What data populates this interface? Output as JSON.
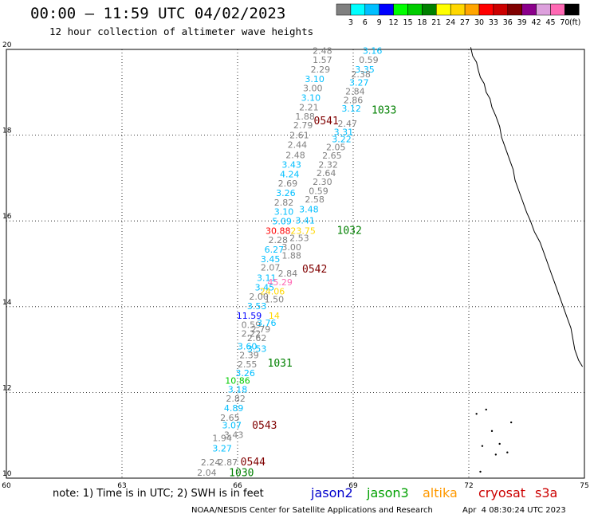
{
  "title": "00:00 – 11:59 UTC 04/02/2023",
  "subtitle": "12 hour collection of altimeter wave heights",
  "legend": {
    "colors": [
      "#808080",
      "#00ffff",
      "#00bfff",
      "#0000ff",
      "#00ff00",
      "#00cc00",
      "#008000",
      "#ffff00",
      "#ffd700",
      "#ffa500",
      "#ff0000",
      "#cc0000",
      "#800000",
      "#8b008b",
      "#dda0dd",
      "#ff69b4",
      "#000000"
    ],
    "labels": [
      "3",
      "6",
      "9",
      "12",
      "15",
      "18",
      "21",
      "24",
      "27",
      "30",
      "33",
      "36",
      "39",
      "42",
      "45",
      "70"
    ],
    "unit": "(ft)"
  },
  "axes": {
    "lon_min": 60,
    "lon_max": 75,
    "lat_min": 10,
    "lat_max": 20,
    "x_ticks": [
      "60",
      "63",
      "66",
      "69",
      "72",
      "75"
    ],
    "y_ticks": [
      "10",
      "12",
      "14",
      "16",
      "18",
      "20"
    ]
  },
  "track_markers": [
    {
      "label": "1033",
      "lon": 69.8,
      "lat": 18.5,
      "color": "#008000"
    },
    {
      "label": "0541",
      "lon": 68.3,
      "lat": 18.25,
      "color": "#800000"
    },
    {
      "label": "1032",
      "lon": 68.9,
      "lat": 15.7,
      "color": "#008000"
    },
    {
      "label": "0542",
      "lon": 68.0,
      "lat": 14.8,
      "color": "#800000"
    },
    {
      "label": "1031",
      "lon": 67.1,
      "lat": 12.6,
      "color": "#008000"
    },
    {
      "label": "0543",
      "lon": 66.7,
      "lat": 11.15,
      "color": "#800000"
    },
    {
      "label": "0544",
      "lon": 66.4,
      "lat": 10.3,
      "color": "#800000"
    },
    {
      "label": "1030",
      "lon": 66.1,
      "lat": 10.05,
      "color": "#008000"
    }
  ],
  "observations": [
    {
      "v": "2.48",
      "lon": 68.2,
      "lat": 19.9,
      "c": "#808080"
    },
    {
      "v": "3.16",
      "lon": 69.5,
      "lat": 19.9,
      "c": "#00bfff"
    },
    {
      "v": "1.57",
      "lon": 68.2,
      "lat": 19.68,
      "c": "#808080"
    },
    {
      "v": "0.59",
      "lon": 69.4,
      "lat": 19.68,
      "c": "#808080"
    },
    {
      "v": "2.29",
      "lon": 68.15,
      "lat": 19.46,
      "c": "#808080"
    },
    {
      "v": "3.35",
      "lon": 69.3,
      "lat": 19.46,
      "c": "#00bfff"
    },
    {
      "v": "3.10",
      "lon": 68.0,
      "lat": 19.24,
      "c": "#00bfff"
    },
    {
      "v": "2.38",
      "lon": 69.2,
      "lat": 19.35,
      "c": "#808080"
    },
    {
      "v": "3.27",
      "lon": 69.15,
      "lat": 19.15,
      "c": "#00bfff"
    },
    {
      "v": "3.00",
      "lon": 67.95,
      "lat": 19.02,
      "c": "#808080"
    },
    {
      "v": "2.84",
      "lon": 69.05,
      "lat": 18.95,
      "c": "#808080"
    },
    {
      "v": "3.10",
      "lon": 67.9,
      "lat": 18.8,
      "c": "#00bfff"
    },
    {
      "v": "2.86",
      "lon": 69.0,
      "lat": 18.75,
      "c": "#808080"
    },
    {
      "v": "2.21",
      "lon": 67.85,
      "lat": 18.58,
      "c": "#808080"
    },
    {
      "v": "3.12",
      "lon": 68.95,
      "lat": 18.55,
      "c": "#00bfff"
    },
    {
      "v": "1.88",
      "lon": 67.75,
      "lat": 18.36,
      "c": "#808080"
    },
    {
      "v": "2.47",
      "lon": 68.85,
      "lat": 18.2,
      "c": "#808080"
    },
    {
      "v": "2.79",
      "lon": 67.7,
      "lat": 18.16,
      "c": "#808080"
    },
    {
      "v": "3.31",
      "lon": 68.75,
      "lat": 18.0,
      "c": "#00bfff"
    },
    {
      "v": "2.61",
      "lon": 67.6,
      "lat": 17.93,
      "c": "#808080"
    },
    {
      "v": "3.22",
      "lon": 68.7,
      "lat": 17.83,
      "c": "#00bfff"
    },
    {
      "v": "2.44",
      "lon": 67.55,
      "lat": 17.7,
      "c": "#808080"
    },
    {
      "v": "2.05",
      "lon": 68.55,
      "lat": 17.65,
      "c": "#808080"
    },
    {
      "v": "2.48",
      "lon": 67.5,
      "lat": 17.46,
      "c": "#808080"
    },
    {
      "v": "2.65",
      "lon": 68.45,
      "lat": 17.45,
      "c": "#808080"
    },
    {
      "v": "3.43",
      "lon": 67.4,
      "lat": 17.24,
      "c": "#00bfff"
    },
    {
      "v": "2.32",
      "lon": 68.35,
      "lat": 17.24,
      "c": "#808080"
    },
    {
      "v": "4.24",
      "lon": 67.35,
      "lat": 17.02,
      "c": "#00bfff"
    },
    {
      "v": "2.64",
      "lon": 68.3,
      "lat": 17.04,
      "c": "#808080"
    },
    {
      "v": "2.69",
      "lon": 67.3,
      "lat": 16.8,
      "c": "#808080"
    },
    {
      "v": "2.30",
      "lon": 68.2,
      "lat": 16.84,
      "c": "#808080"
    },
    {
      "v": "0.59",
      "lon": 68.1,
      "lat": 16.63,
      "c": "#808080"
    },
    {
      "v": "3.26",
      "lon": 67.25,
      "lat": 16.58,
      "c": "#00bfff"
    },
    {
      "v": "2.58",
      "lon": 68.0,
      "lat": 16.43,
      "c": "#808080"
    },
    {
      "v": "2.82",
      "lon": 67.2,
      "lat": 16.36,
      "c": "#808080"
    },
    {
      "v": "3.10",
      "lon": 67.2,
      "lat": 16.14,
      "c": "#00bfff"
    },
    {
      "v": "3.48",
      "lon": 67.85,
      "lat": 16.2,
      "c": "#00bfff"
    },
    {
      "v": "5.09",
      "lon": 67.15,
      "lat": 15.92,
      "c": "#00bfff"
    },
    {
      "v": "3.41",
      "lon": 67.75,
      "lat": 15.94,
      "c": "#00bfff"
    },
    {
      "v": "30.88",
      "lon": 67.05,
      "lat": 15.7,
      "c": "#ff0000"
    },
    {
      "v": "23.75",
      "lon": 67.7,
      "lat": 15.7,
      "c": "#ffd700"
    },
    {
      "v": "2.28",
      "lon": 67.05,
      "lat": 15.48,
      "c": "#808080"
    },
    {
      "v": "2.53",
      "lon": 67.6,
      "lat": 15.53,
      "c": "#808080"
    },
    {
      "v": "3.00",
      "lon": 67.4,
      "lat": 15.32,
      "c": "#808080"
    },
    {
      "v": "6.27",
      "lon": 66.95,
      "lat": 15.26,
      "c": "#00bfff"
    },
    {
      "v": "1.88",
      "lon": 67.4,
      "lat": 15.12,
      "c": "#808080"
    },
    {
      "v": "3.45",
      "lon": 66.85,
      "lat": 15.04,
      "c": "#00bfff"
    },
    {
      "v": "2.07",
      "lon": 66.85,
      "lat": 14.84,
      "c": "#808080"
    },
    {
      "v": "2.84",
      "lon": 67.3,
      "lat": 14.7,
      "c": "#808080"
    },
    {
      "v": "3.11",
      "lon": 66.75,
      "lat": 14.6,
      "c": "#00bfff"
    },
    {
      "v": "45.29",
      "lon": 67.1,
      "lat": 14.5,
      "c": "#ff69b4"
    },
    {
      "v": "3.45",
      "lon": 66.7,
      "lat": 14.38,
      "c": "#00bfff"
    },
    {
      "v": "24.06",
      "lon": 66.9,
      "lat": 14.28,
      "c": "#ffd700"
    },
    {
      "v": "2.00",
      "lon": 66.55,
      "lat": 14.16,
      "c": "#808080"
    },
    {
      "v": "1.50",
      "lon": 66.95,
      "lat": 14.1,
      "c": "#808080"
    },
    {
      "v": "3.53",
      "lon": 66.5,
      "lat": 13.94,
      "c": "#00bfff"
    },
    {
      "v": "11.59",
      "lon": 66.3,
      "lat": 13.72,
      "c": "#0000ff"
    },
    {
      "v": "14",
      "lon": 66.95,
      "lat": 13.72,
      "c": "#ffd700"
    },
    {
      "v": "0.59",
      "lon": 66.35,
      "lat": 13.5,
      "c": "#808080"
    },
    {
      "v": "3.76",
      "lon": 66.75,
      "lat": 13.55,
      "c": "#00bfff"
    },
    {
      "v": "2.79",
      "lon": 66.6,
      "lat": 13.4,
      "c": "#808080"
    },
    {
      "v": "2.22",
      "lon": 66.35,
      "lat": 13.3,
      "c": "#808080"
    },
    {
      "v": "2.62",
      "lon": 66.5,
      "lat": 13.2,
      "c": "#808080"
    },
    {
      "v": "3.60",
      "lon": 66.25,
      "lat": 13.0,
      "c": "#00bfff"
    },
    {
      "v": "3.53",
      "lon": 66.5,
      "lat": 12.95,
      "c": "#00bfff"
    },
    {
      "v": "2.39",
      "lon": 66.3,
      "lat": 12.8,
      "c": "#808080"
    },
    {
      "v": "2.55",
      "lon": 66.25,
      "lat": 12.58,
      "c": "#808080"
    },
    {
      "v": "3.26",
      "lon": 66.2,
      "lat": 12.38,
      "c": "#00bfff"
    },
    {
      "v": "10.86",
      "lon": 66.0,
      "lat": 12.2,
      "c": "#00cc00"
    },
    {
      "v": "3.18",
      "lon": 66.0,
      "lat": 12.0,
      "c": "#00bfff"
    },
    {
      "v": "2.82",
      "lon": 65.95,
      "lat": 11.78,
      "c": "#808080"
    },
    {
      "v": "4.89",
      "lon": 65.9,
      "lat": 11.56,
      "c": "#00bfff"
    },
    {
      "v": "2.65",
      "lon": 65.8,
      "lat": 11.34,
      "c": "#808080"
    },
    {
      "v": "3.07",
      "lon": 65.85,
      "lat": 11.16,
      "c": "#00bfff"
    },
    {
      "v": "3.43",
      "lon": 65.9,
      "lat": 10.94,
      "c": "#808080"
    },
    {
      "v": "1.94",
      "lon": 65.6,
      "lat": 10.86,
      "c": "#808080"
    },
    {
      "v": "3.27",
      "lon": 65.6,
      "lat": 10.62,
      "c": "#00bfff"
    },
    {
      "v": "2.24",
      "lon": 65.3,
      "lat": 10.3,
      "c": "#808080"
    },
    {
      "v": "2.87",
      "lon": 65.75,
      "lat": 10.3,
      "c": "#808080"
    },
    {
      "v": "2.04",
      "lon": 65.2,
      "lat": 10.06,
      "c": "#808080"
    }
  ],
  "note_text": "note: 1) Time is in UTC; 2) SWH is in feet",
  "satellites": [
    {
      "name": "jason2",
      "color": "#0000cc",
      "left": 390
    },
    {
      "name": "jason3",
      "color": "#00a000",
      "left": 460
    },
    {
      "name": "altika",
      "color": "#ff9900",
      "left": 530
    },
    {
      "name": "cryosat",
      "color": "#cc0000",
      "left": 600
    },
    {
      "name": "s3a",
      "color": "#cc0000",
      "left": 671
    }
  ],
  "credit": "NOAA/NESDIS Center for Satellite Applications and Research",
  "timestamp": "Apr  4 08:30:24 UTC 2023"
}
